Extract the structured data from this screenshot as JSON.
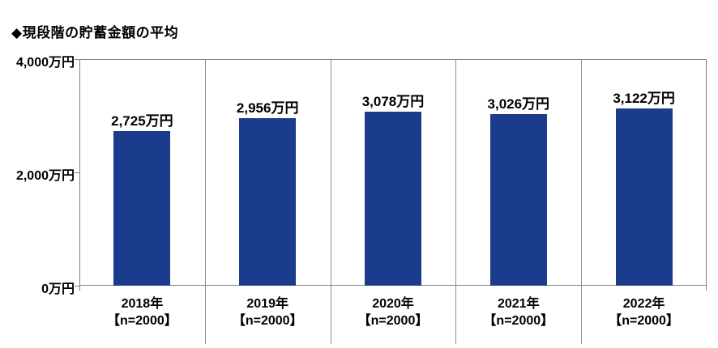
{
  "title": "◆現段階の貯蓄金額の平均",
  "colors": {
    "bar": "#1b3c8c",
    "axis": "#808080",
    "divider": "#8c8c8c",
    "text": "#000000",
    "background": "#ffffff"
  },
  "chart_data": {
    "type": "bar",
    "title": "◆現段階の貯蓄金額の平均",
    "categories": [
      "2018年",
      "2019年",
      "2020年",
      "2021年",
      "2022年"
    ],
    "category_subs": [
      "【n=2000】",
      "【n=2000】",
      "【n=2000】",
      "【n=2000】",
      "【n=2000】"
    ],
    "values": [
      2725,
      2956,
      3078,
      3026,
      3122
    ],
    "value_labels": [
      "2,725万円",
      "2,956万円",
      "3,078万円",
      "3,026万円",
      "3,122万円"
    ],
    "xlabel": "",
    "ylabel": "",
    "ylim": [
      0,
      4000
    ],
    "yticks": [
      {
        "value": 0,
        "label": "0万円"
      },
      {
        "value": 2000,
        "label": "2,000万円"
      },
      {
        "value": 4000,
        "label": "4,000万円"
      }
    ],
    "grid": false,
    "legend": null,
    "bar_color": "#1b3c8c"
  }
}
